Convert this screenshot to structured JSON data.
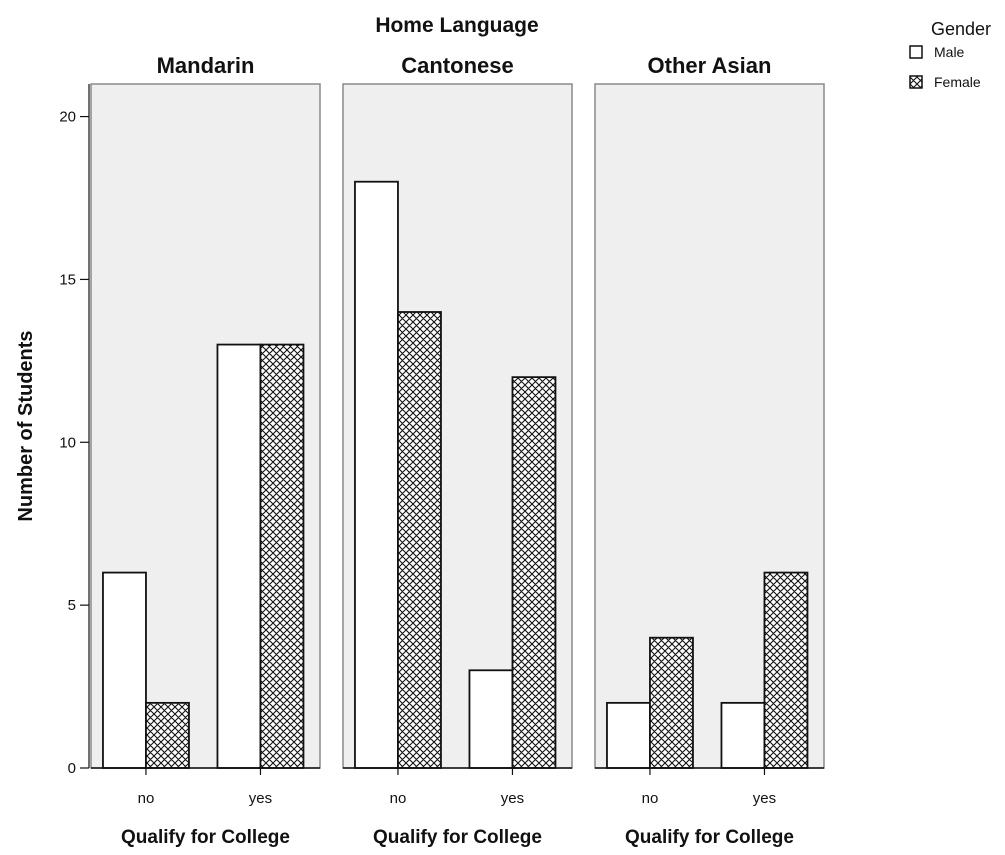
{
  "chart_data": {
    "type": "bar",
    "title": "Home Language",
    "ylabel": "Number of Students",
    "xlabel": "Qualify for College",
    "ylim": [
      0,
      21
    ],
    "yticks": [
      0,
      5,
      10,
      15,
      20
    ],
    "categories": [
      "no",
      "yes"
    ],
    "legend": {
      "title": "Gender",
      "placement": "top-right",
      "entries": [
        {
          "name": "Male",
          "fill": "plain"
        },
        {
          "name": "Female",
          "fill": "crosshatch"
        }
      ]
    },
    "panels": [
      {
        "title": "Mandarin",
        "xlabel": "Qualify for College",
        "series": [
          {
            "name": "Male",
            "values": [
              6,
              13
            ]
          },
          {
            "name": "Female",
            "values": [
              2,
              13
            ]
          }
        ]
      },
      {
        "title": "Cantonese",
        "xlabel": "Qualify for College",
        "series": [
          {
            "name": "Male",
            "values": [
              18,
              3
            ]
          },
          {
            "name": "Female",
            "values": [
              14,
              12
            ]
          }
        ]
      },
      {
        "title": "Other Asian",
        "xlabel": "Qualify for College",
        "series": [
          {
            "name": "Male",
            "values": [
              2,
              2
            ]
          },
          {
            "name": "Female",
            "values": [
              4,
              6
            ]
          }
        ]
      }
    ],
    "grid": false
  },
  "colors": {
    "panel_background": "#efefef",
    "panel_border": "#8a8a8a",
    "bar_stroke": "#111111",
    "male_fill": "#ffffff",
    "female_hatch": "#111111"
  }
}
